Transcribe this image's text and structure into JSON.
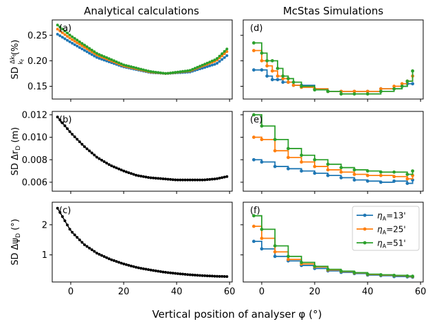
{
  "column_titles": [
    "Analytical calculations",
    "McStas Simulations"
  ],
  "xlabel": "Vertical position of analyser φ (°)",
  "colors": {
    "s13": "#1f77b4",
    "s25": "#ff7f0e",
    "s51": "#2ca02c",
    "black": "#000000"
  },
  "chart_data": [
    {
      "id": "a",
      "panel_label": "(a)",
      "type": "scatter",
      "ylabel": "SD Δkf/kf (%)",
      "ylabel_parts": {
        "prefix": "SD",
        "frac_num": "Δk_f",
        "frac_den": "k_f",
        "suffix": "(%)"
      },
      "xlim": [
        -7,
        61
      ],
      "ylim": [
        0.125,
        0.28
      ],
      "xticks": [
        0,
        20,
        40,
        60
      ],
      "yticks": [
        0.15,
        0.2,
        0.25
      ],
      "yticklabels": [
        "0.15",
        "0.20",
        "0.25"
      ],
      "series": [
        {
          "name": "ηA=13'",
          "color_key": "s13",
          "x": [
            -5,
            0,
            10,
            20,
            30,
            36,
            45,
            55,
            59
          ],
          "y": [
            0.252,
            0.236,
            0.206,
            0.188,
            0.177,
            0.175,
            0.178,
            0.194,
            0.21
          ]
        },
        {
          "name": "ηA=25'",
          "color_key": "s25",
          "x": [
            -5,
            0,
            10,
            20,
            30,
            36,
            45,
            55,
            59
          ],
          "y": [
            0.262,
            0.243,
            0.211,
            0.19,
            0.178,
            0.175,
            0.18,
            0.2,
            0.218
          ]
        },
        {
          "name": "ηA=51'",
          "color_key": "s51",
          "x": [
            -5,
            0,
            10,
            20,
            30,
            36,
            45,
            55,
            59
          ],
          "y": [
            0.27,
            0.249,
            0.214,
            0.192,
            0.179,
            0.175,
            0.181,
            0.203,
            0.223
          ]
        }
      ]
    },
    {
      "id": "d",
      "panel_label": "(d)",
      "type": "line",
      "xlim": [
        -7,
        61
      ],
      "ylim": [
        0.125,
        0.28
      ],
      "xticks": [
        0,
        20,
        40,
        60
      ],
      "yticks": [
        0.15,
        0.2,
        0.25
      ],
      "series": [
        {
          "name": "ηA=13'",
          "color_key": "s13",
          "x": [
            -3,
            0,
            2,
            4,
            6,
            8,
            10,
            12,
            15,
            20,
            25,
            30,
            35,
            40,
            45,
            50,
            53,
            55,
            57
          ],
          "y": [
            0.182,
            0.182,
            0.17,
            0.163,
            0.163,
            0.158,
            0.158,
            0.152,
            0.152,
            0.145,
            0.14,
            0.14,
            0.14,
            0.14,
            0.145,
            0.145,
            0.15,
            0.155,
            0.155
          ]
        },
        {
          "name": "ηA=25'",
          "color_key": "s25",
          "x": [
            -3,
            0,
            2,
            4,
            6,
            8,
            10,
            12,
            15,
            20,
            25,
            30,
            35,
            40,
            45,
            50,
            53,
            55,
            57
          ],
          "y": [
            0.22,
            0.2,
            0.19,
            0.18,
            0.17,
            0.165,
            0.158,
            0.152,
            0.148,
            0.145,
            0.14,
            0.14,
            0.14,
            0.14,
            0.145,
            0.15,
            0.155,
            0.16,
            0.17
          ]
        },
        {
          "name": "ηA=51'",
          "color_key": "s51",
          "x": [
            -3,
            0,
            2,
            4,
            6,
            8,
            10,
            12,
            15,
            20,
            25,
            30,
            35,
            40,
            45,
            50,
            53,
            55,
            57
          ],
          "y": [
            0.235,
            0.215,
            0.2,
            0.2,
            0.185,
            0.17,
            0.165,
            0.158,
            0.15,
            0.143,
            0.14,
            0.135,
            0.135,
            0.135,
            0.14,
            0.145,
            0.15,
            0.16,
            0.18
          ]
        }
      ]
    },
    {
      "id": "b",
      "panel_label": "(b)",
      "type": "scatter",
      "ylabel": "SD ΔrD (m)",
      "ylabel_parts": {
        "prefix": "SD Δr",
        "sub": "D",
        "suffix": " (m)"
      },
      "xlim": [
        -7,
        61
      ],
      "ylim": [
        0.0052,
        0.0123
      ],
      "xticks": [
        0,
        20,
        40,
        60
      ],
      "yticks": [
        0.006,
        0.008,
        0.01,
        0.012
      ],
      "yticklabels": [
        "0.006",
        "0.008",
        "0.010",
        "0.012"
      ],
      "series": [
        {
          "name": "analytical",
          "color_key": "black",
          "x": [
            -5,
            0,
            5,
            10,
            15,
            20,
            25,
            30,
            35,
            40,
            45,
            50,
            55,
            59
          ],
          "y": [
            0.0118,
            0.0104,
            0.0092,
            0.0082,
            0.0075,
            0.007,
            0.0066,
            0.0064,
            0.0063,
            0.0062,
            0.0062,
            0.0062,
            0.0063,
            0.0065
          ]
        }
      ]
    },
    {
      "id": "e",
      "panel_label": "(e)",
      "type": "line",
      "xlim": [
        -7,
        61
      ],
      "ylim": [
        0.0052,
        0.0123
      ],
      "xticks": [
        0,
        20,
        40,
        60
      ],
      "yticks": [
        0.006,
        0.008,
        0.01,
        0.012
      ],
      "series": [
        {
          "name": "ηA=13'",
          "color_key": "s13",
          "x": [
            -3,
            0,
            5,
            10,
            15,
            20,
            25,
            30,
            35,
            40,
            45,
            50,
            55,
            57
          ],
          "y": [
            0.008,
            0.0078,
            0.0074,
            0.0072,
            0.007,
            0.0068,
            0.0066,
            0.0064,
            0.0062,
            0.0061,
            0.006,
            0.0061,
            0.0059,
            0.0062
          ]
        },
        {
          "name": "ηA=25'",
          "color_key": "s25",
          "x": [
            -3,
            0,
            5,
            10,
            15,
            20,
            25,
            30,
            35,
            40,
            45,
            50,
            55,
            57
          ],
          "y": [
            0.01,
            0.0098,
            0.0088,
            0.0082,
            0.0078,
            0.0074,
            0.0071,
            0.0069,
            0.0067,
            0.0066,
            0.0066,
            0.0065,
            0.0063,
            0.0066
          ]
        },
        {
          "name": "ηA=51'",
          "color_key": "s51",
          "x": [
            -3,
            0,
            5,
            10,
            15,
            20,
            25,
            30,
            35,
            40,
            45,
            50,
            55,
            57
          ],
          "y": [
            0.012,
            0.011,
            0.0098,
            0.009,
            0.0084,
            0.008,
            0.0076,
            0.0073,
            0.0071,
            0.007,
            0.0069,
            0.0069,
            0.0067,
            0.007
          ]
        }
      ]
    },
    {
      "id": "c",
      "panel_label": "(c)",
      "type": "scatter",
      "ylabel": "SD ΔψD (°)",
      "ylabel_parts": {
        "prefix": "SD Δψ",
        "sub": "D",
        "suffix": " (°)"
      },
      "xlim": [
        -7,
        61
      ],
      "ylim": [
        0.1,
        2.75
      ],
      "xticks": [
        0,
        20,
        40,
        60
      ],
      "yticks": [
        1,
        2
      ],
      "yticklabels": [
        "1",
        "2"
      ],
      "series": [
        {
          "name": "analytical",
          "color_key": "black",
          "x": [
            -5,
            0,
            5,
            10,
            15,
            20,
            25,
            30,
            35,
            40,
            45,
            50,
            55,
            59
          ],
          "y": [
            2.55,
            1.8,
            1.35,
            1.05,
            0.85,
            0.7,
            0.58,
            0.5,
            0.43,
            0.38,
            0.34,
            0.31,
            0.29,
            0.28
          ]
        }
      ]
    },
    {
      "id": "f",
      "panel_label": "(f)",
      "type": "line",
      "xlim": [
        -7,
        61
      ],
      "ylim": [
        0.1,
        2.75
      ],
      "xticks": [
        0,
        20,
        40,
        60
      ],
      "yticks": [
        1,
        2
      ],
      "legend": {
        "placement": "top-right",
        "entries": [
          "ηA=13'",
          "ηA=25'",
          "ηA=51'"
        ]
      },
      "series": [
        {
          "name": "ηA=13'",
          "color_key": "s13",
          "x": [
            -3,
            0,
            5,
            10,
            15,
            20,
            25,
            30,
            35,
            40,
            45,
            50,
            55,
            57
          ],
          "y": [
            1.45,
            1.2,
            0.95,
            0.8,
            0.65,
            0.55,
            0.47,
            0.42,
            0.38,
            0.33,
            0.31,
            0.28,
            0.27,
            0.26
          ]
        },
        {
          "name": "ηA=25'",
          "color_key": "s25",
          "x": [
            -3,
            0,
            5,
            10,
            15,
            20,
            25,
            30,
            35,
            40,
            45,
            50,
            55,
            57
          ],
          "y": [
            1.95,
            1.55,
            1.1,
            0.85,
            0.7,
            0.6,
            0.5,
            0.45,
            0.4,
            0.35,
            0.33,
            0.31,
            0.29,
            0.28
          ]
        },
        {
          "name": "ηA=51'",
          "color_key": "s51",
          "x": [
            -3,
            0,
            5,
            10,
            15,
            20,
            25,
            30,
            35,
            40,
            45,
            50,
            55,
            57
          ],
          "y": [
            2.3,
            1.85,
            1.3,
            0.95,
            0.75,
            0.62,
            0.52,
            0.46,
            0.41,
            0.36,
            0.34,
            0.32,
            0.3,
            0.29
          ]
        }
      ]
    }
  ]
}
